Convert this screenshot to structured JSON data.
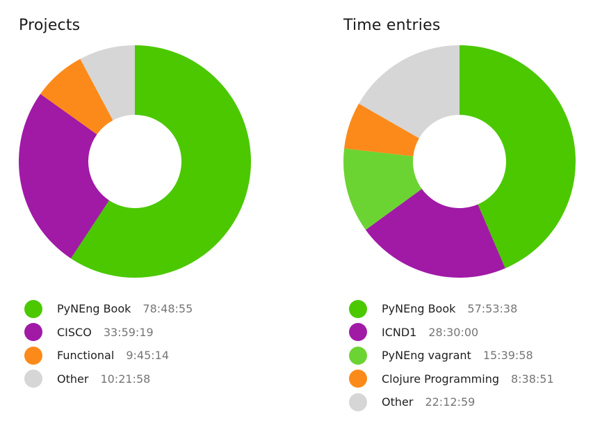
{
  "chart_data": [
    {
      "type": "pie",
      "title": "Projects",
      "categories": [
        "PyNEng Book",
        "CISCO",
        "Functional",
        "Other"
      ],
      "values": [
        "78:48:55",
        "33:59:19",
        "9:45:14",
        "10:21:58"
      ],
      "colors": [
        "#4bc800",
        "#a01aa6",
        "#fc8a1a",
        "#d6d6d6"
      ]
    },
    {
      "type": "pie",
      "title": "Time entries",
      "categories": [
        "PyNEng Book",
        "ICND1",
        "PyNEng vagrant",
        "Clojure Programming",
        "Other"
      ],
      "values": [
        "57:53:38",
        "28:30:00",
        "15:39:58",
        "8:38:51",
        "22:12:59"
      ],
      "colors": [
        "#4bc800",
        "#a01aa6",
        "#6cd432",
        "#fc8a1a",
        "#d6d6d6"
      ]
    }
  ]
}
